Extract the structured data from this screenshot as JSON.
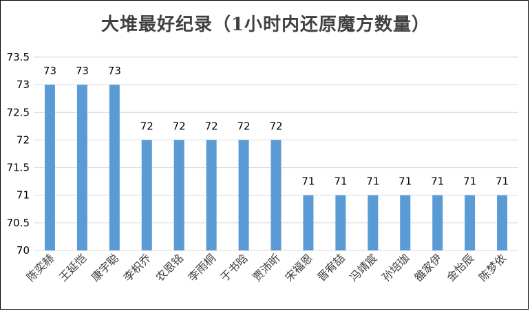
{
  "chart_data": {
    "type": "bar",
    "title": "大堆最好纪录（1小时内还原魔方数量）",
    "categories": [
      "陈奕赫",
      "王延恺",
      "康宇聪",
      "李枳乔",
      "农恩铭",
      "李雨桐",
      "于书晗",
      "贾沛昕",
      "宋福恩",
      "晋宥喆",
      "冯靖宸",
      "孙培珈",
      "雒家伊",
      "金怡辰",
      "陈梦依"
    ],
    "values": [
      73,
      73,
      73,
      72,
      72,
      72,
      72,
      72,
      71,
      71,
      71,
      71,
      71,
      71,
      71
    ],
    "ylim": [
      70,
      73.5
    ],
    "yticks": [
      "70",
      "70.5",
      "71",
      "71.5",
      "72",
      "72.5",
      "73",
      "73.5"
    ],
    "xlabel": "",
    "ylabel": "",
    "grid": true,
    "colors": {
      "bar": "#5B9BD5",
      "grid": "#D9D9D9"
    }
  }
}
